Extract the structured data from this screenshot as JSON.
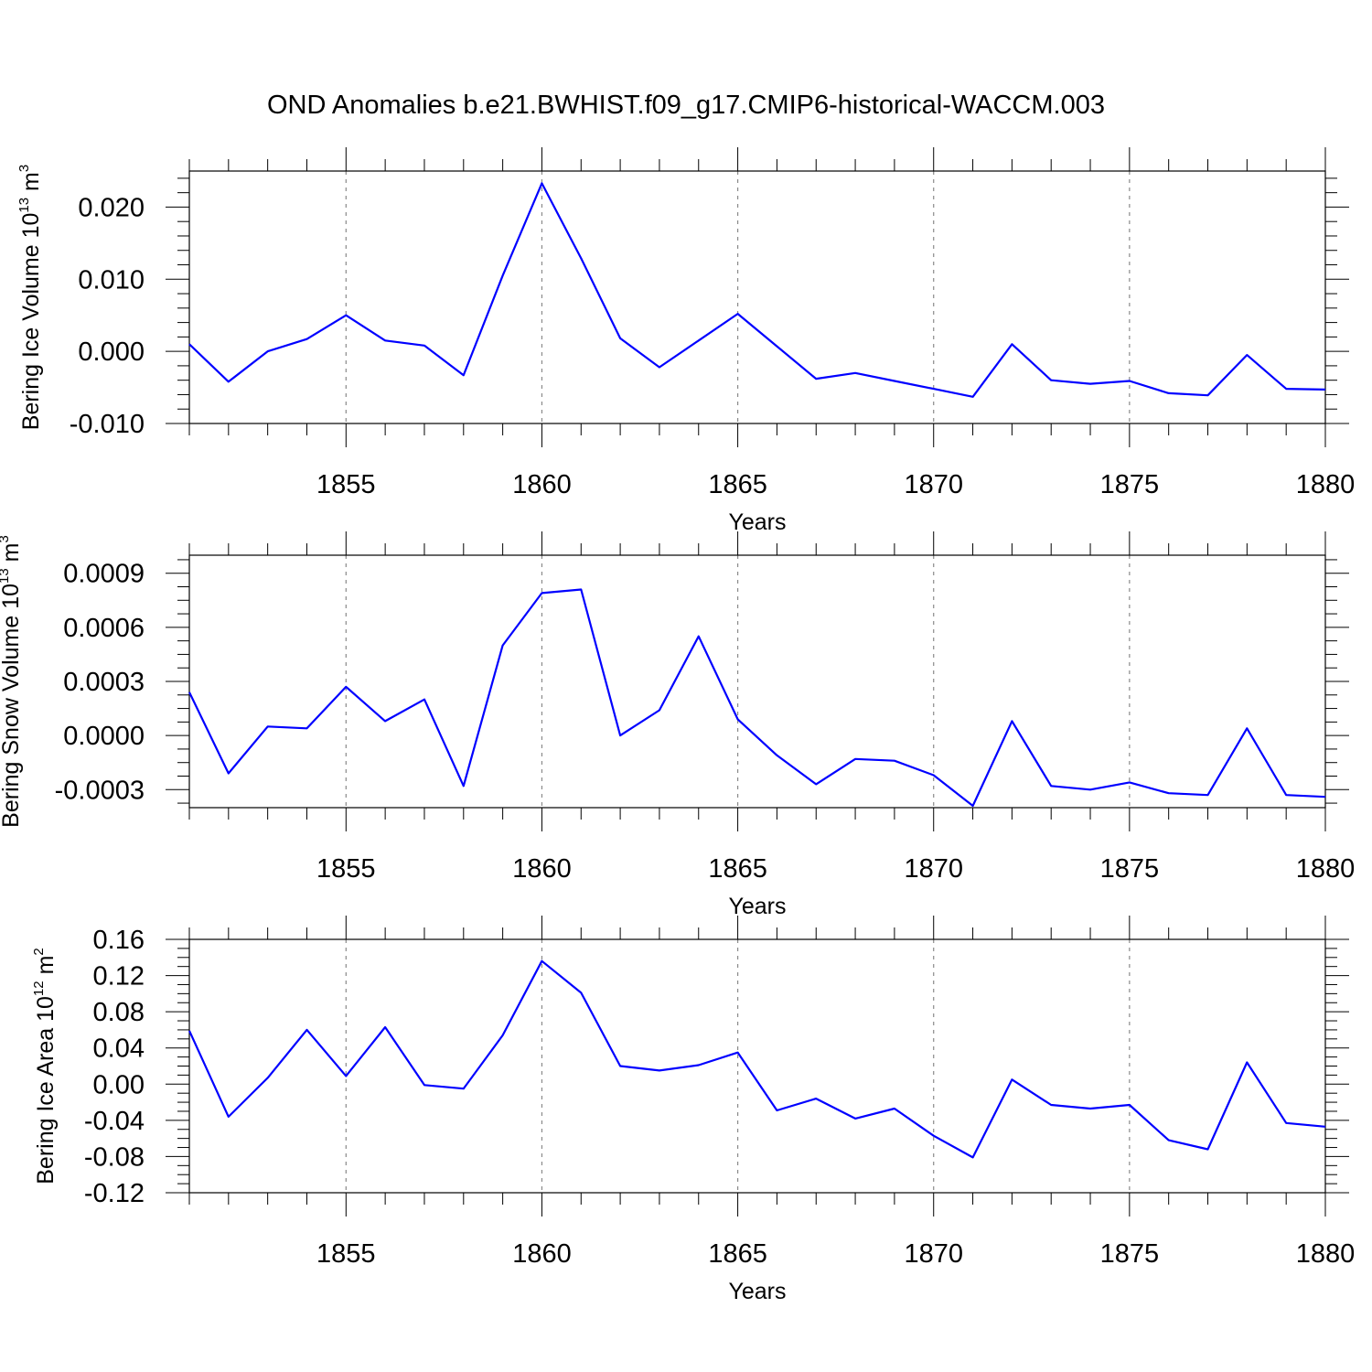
{
  "title": "OND Anomalies b.e21.BWHIST.f09_g17.CMIP6-historical-WACCM.003",
  "line_color": "#0000ff",
  "chart_data": [
    {
      "type": "line",
      "xlabel": "Years",
      "ylabel": "Bering Ice Volume 10",
      "ylabel_exp": "13",
      "ylabel_unit": " m",
      "ylabel_unit_exp": "3",
      "xlim": [
        1851,
        1880
      ],
      "ylim": [
        -0.01,
        0.025
      ],
      "x_ticks": [
        "1855",
        "1860",
        "1865",
        "1870",
        "1875",
        "1880"
      ],
      "y_ticks": [
        "0.020",
        "0.010",
        "0.000",
        "-0.010"
      ],
      "y_tick_values": [
        0.02,
        0.01,
        0.0,
        -0.01
      ],
      "x": [
        1851,
        1852,
        1853,
        1854,
        1855,
        1856,
        1857,
        1858,
        1859,
        1860,
        1861,
        1862,
        1863,
        1864,
        1865,
        1866,
        1867,
        1868,
        1869,
        1870,
        1871,
        1872,
        1873,
        1874,
        1875,
        1876,
        1877,
        1878,
        1879,
        1880
      ],
      "values": [
        0.001,
        -0.0042,
        0.0,
        0.0017,
        0.005,
        0.0015,
        0.0008,
        -0.0033,
        0.0105,
        0.0233,
        0.0129,
        0.0018,
        -0.0022,
        0.0015,
        0.0052,
        0.0007,
        -0.0038,
        -0.003,
        -0.0041,
        -0.0052,
        -0.0063,
        0.001,
        -0.004,
        -0.0045,
        -0.0041,
        -0.0058,
        -0.0061,
        -0.0005,
        -0.0052,
        -0.0053
      ]
    },
    {
      "type": "line",
      "xlabel": "Years",
      "ylabel": "Bering Snow Volume 10",
      "ylabel_exp": "13",
      "ylabel_unit": " m",
      "ylabel_unit_exp": "3",
      "xlim": [
        1851,
        1880
      ],
      "ylim": [
        -0.0004,
        0.001
      ],
      "x_ticks": [
        "1855",
        "1860",
        "1865",
        "1870",
        "1875",
        "1880"
      ],
      "y_ticks": [
        "0.0009",
        "0.0006",
        "0.0003",
        "0.0000",
        "-0.0003"
      ],
      "y_tick_values": [
        0.0009,
        0.0006,
        0.0003,
        0.0,
        -0.0003
      ],
      "x": [
        1851,
        1852,
        1853,
        1854,
        1855,
        1856,
        1857,
        1858,
        1859,
        1860,
        1861,
        1862,
        1863,
        1864,
        1865,
        1866,
        1867,
        1868,
        1869,
        1870,
        1871,
        1872,
        1873,
        1874,
        1875,
        1876,
        1877,
        1878,
        1879,
        1880
      ],
      "values": [
        0.00024,
        -0.00021,
        5e-05,
        4e-05,
        0.00027,
        8e-05,
        0.0002,
        -0.00028,
        0.0005,
        0.00079,
        0.00081,
        0.0,
        0.00014,
        0.00055,
        9e-05,
        -0.00011,
        -0.00027,
        -0.00013,
        -0.00014,
        -0.00022,
        -0.00039,
        8e-05,
        -0.00028,
        -0.0003,
        -0.00026,
        -0.00032,
        -0.00033,
        4e-05,
        -0.00033,
        -0.00034
      ]
    },
    {
      "type": "line",
      "xlabel": "Years",
      "ylabel": "Bering Ice Area 10",
      "ylabel_exp": "12",
      "ylabel_unit": " m",
      "ylabel_unit_exp": "2",
      "xlim": [
        1851,
        1880
      ],
      "ylim": [
        -0.12,
        0.16
      ],
      "x_ticks": [
        "1855",
        "1860",
        "1865",
        "1870",
        "1875",
        "1880"
      ],
      "y_ticks": [
        "0.16",
        "0.12",
        "0.08",
        "0.04",
        "0.00",
        "-0.04",
        "-0.08",
        "-0.12"
      ],
      "y_tick_values": [
        0.16,
        0.12,
        0.08,
        0.04,
        0.0,
        -0.04,
        -0.08,
        -0.12
      ],
      "x": [
        1851,
        1852,
        1853,
        1854,
        1855,
        1856,
        1857,
        1858,
        1859,
        1860,
        1861,
        1862,
        1863,
        1864,
        1865,
        1866,
        1867,
        1868,
        1869,
        1870,
        1871,
        1872,
        1873,
        1874,
        1875,
        1876,
        1877,
        1878,
        1879,
        1880
      ],
      "values": [
        0.059,
        -0.036,
        0.007,
        0.06,
        0.009,
        0.063,
        -0.001,
        -0.005,
        0.054,
        0.136,
        0.101,
        0.02,
        0.015,
        0.021,
        0.035,
        -0.029,
        -0.016,
        -0.038,
        -0.027,
        -0.057,
        -0.081,
        0.005,
        -0.023,
        -0.027,
        -0.023,
        -0.062,
        -0.072,
        0.024,
        -0.043,
        -0.047
      ]
    }
  ]
}
